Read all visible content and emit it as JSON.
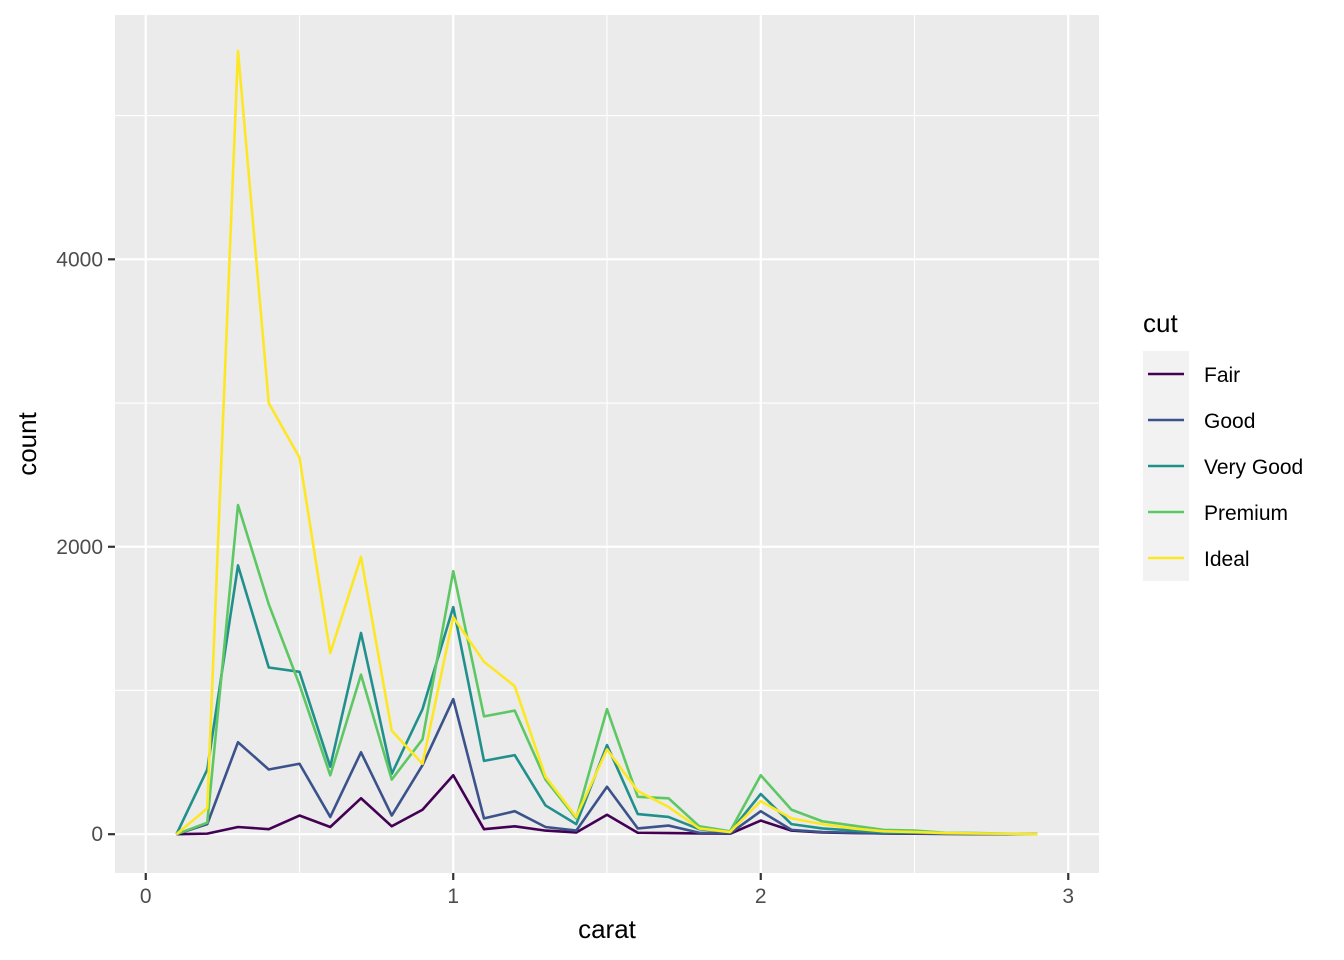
{
  "chart_data": {
    "type": "line",
    "title": "",
    "xlabel": "carat",
    "ylabel": "count",
    "xlim": [
      -0.1,
      3.1
    ],
    "ylim": [
      -270,
      5700
    ],
    "x_ticks": [
      0,
      1,
      2,
      3
    ],
    "x_tick_labels": [
      "0",
      "1",
      "2",
      "3"
    ],
    "y_ticks": [
      0,
      2000,
      4000
    ],
    "y_tick_labels": [
      "0",
      "2000",
      "4000"
    ],
    "y_minor_ticks": [
      1000,
      3000,
      5000
    ],
    "x_minor_ticks": [
      0.5,
      1.5,
      2.5
    ],
    "grid": true,
    "legend": {
      "title": "cut",
      "position": "right"
    },
    "x": [
      0.1,
      0.2,
      0.3,
      0.4,
      0.5,
      0.6,
      0.7,
      0.8,
      0.9,
      1.0,
      1.1,
      1.2,
      1.3,
      1.4,
      1.5,
      1.6,
      1.7,
      1.8,
      1.9,
      2.0,
      2.1,
      2.2,
      2.3,
      2.4,
      2.5,
      2.6,
      2.7,
      2.8,
      2.9
    ],
    "series": [
      {
        "name": "Fair",
        "color": "#440154",
        "values": [
          0,
          4,
          50,
          35,
          130,
          50,
          250,
          55,
          170,
          410,
          35,
          55,
          25,
          12,
          135,
          10,
          8,
          5,
          3,
          95,
          25,
          12,
          8,
          5,
          3,
          2,
          1,
          1,
          0
        ]
      },
      {
        "name": "Good",
        "color": "#3B528B",
        "values": [
          0,
          70,
          640,
          450,
          490,
          120,
          570,
          130,
          480,
          940,
          110,
          160,
          50,
          25,
          330,
          40,
          60,
          10,
          5,
          160,
          30,
          15,
          10,
          5,
          5,
          3,
          2,
          1,
          0
        ]
      },
      {
        "name": "Very Good",
        "color": "#21908C",
        "values": [
          0,
          450,
          1870,
          1160,
          1130,
          470,
          1400,
          420,
          870,
          1580,
          510,
          550,
          200,
          70,
          620,
          140,
          120,
          35,
          15,
          280,
          70,
          40,
          25,
          12,
          10,
          5,
          3,
          2,
          0
        ]
      },
      {
        "name": "Premium",
        "color": "#5DC863",
        "values": [
          0,
          80,
          2290,
          1600,
          1040,
          410,
          1110,
          380,
          660,
          1830,
          820,
          860,
          380,
          110,
          870,
          260,
          250,
          55,
          20,
          410,
          170,
          90,
          60,
          30,
          25,
          10,
          8,
          4,
          0
        ]
      },
      {
        "name": "Ideal",
        "color": "#FDE725",
        "values": [
          0,
          180,
          5450,
          3000,
          2620,
          1260,
          1930,
          720,
          490,
          1510,
          1200,
          1030,
          400,
          120,
          590,
          300,
          190,
          40,
          15,
          230,
          110,
          70,
          40,
          20,
          15,
          8,
          5,
          3,
          0
        ]
      }
    ]
  }
}
